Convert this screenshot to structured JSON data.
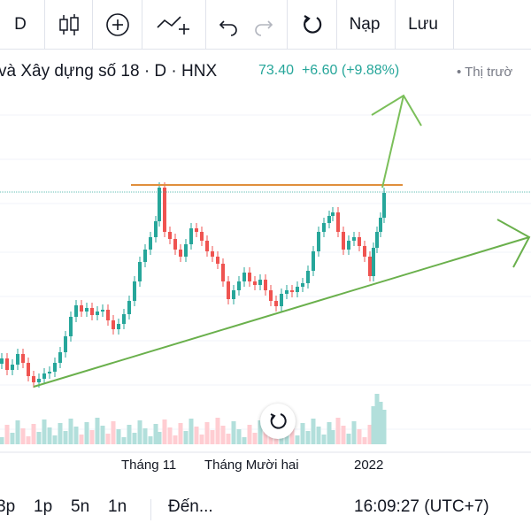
{
  "toolbar": {
    "interval": "D",
    "load_label": "Nạp",
    "save_label": "Lưu",
    "icons": [
      "candles-icon",
      "compare-plus-icon",
      "indicators-icon",
      "undo-icon",
      "redo-icon",
      "refresh-icon"
    ]
  },
  "legend": {
    "title": "và Xây dựng số 18 · D · HNX",
    "last": "73.40",
    "change": "+6.60 (+9.88%)",
    "status": "• Thị trườ"
  },
  "x_axis": {
    "labels": [
      "Tháng 11",
      "Tháng Mười hai",
      "2022"
    ]
  },
  "bottom_bar": {
    "ranges": [
      "3p",
      "1p",
      "5n",
      "1n"
    ],
    "goto": "Đến...",
    "clock": "16:09:27 (UTC+7)"
  },
  "colors": {
    "up": "#26a69a",
    "down": "#ef5350",
    "vol_up": "#b2dfdb",
    "vol_down": "#ffcdd2",
    "trendline": "#6ab04c",
    "resistance": "#e08e3c"
  }
}
